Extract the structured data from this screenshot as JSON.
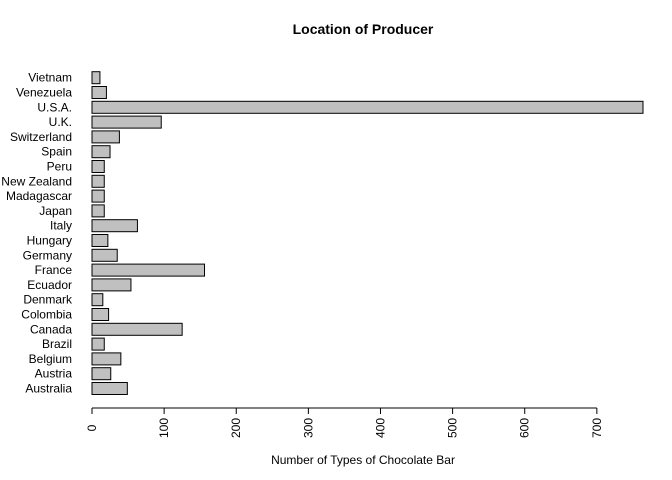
{
  "chart_data": {
    "type": "bar",
    "orientation": "horizontal",
    "title": "Location of Producer",
    "xlabel": "Number of Types of Chocolate Bar",
    "ylabel": "",
    "xlim": [
      0,
      764
    ],
    "xticks": [
      0,
      100,
      200,
      300,
      400,
      500,
      600,
      700
    ],
    "grid": false,
    "bar_color": "#c0c0c0",
    "categories": [
      "Australia",
      "Austria",
      "Belgium",
      "Brazil",
      "Canada",
      "Colombia",
      "Denmark",
      "Ecuador",
      "France",
      "Germany",
      "Hungary",
      "Italy",
      "Japan",
      "Madagascar",
      "New Zealand",
      "Peru",
      "Spain",
      "Switzerland",
      "U.K.",
      "U.S.A.",
      "Venezuela",
      "Vietnam"
    ],
    "values": [
      49,
      26,
      40,
      17,
      125,
      23,
      15,
      54,
      156,
      35,
      22,
      63,
      17,
      17,
      17,
      17,
      25,
      38,
      96,
      764,
      20,
      11
    ]
  }
}
